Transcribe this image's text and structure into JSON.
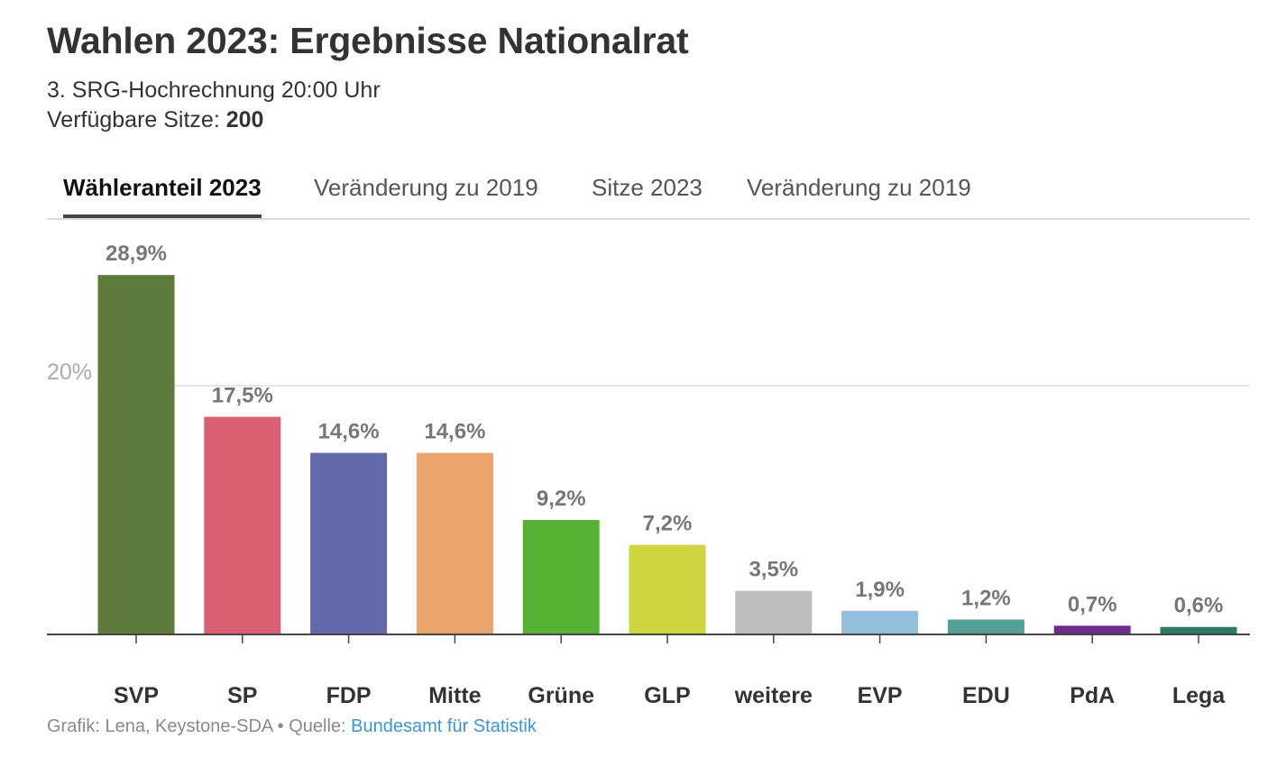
{
  "header": {
    "title": "Wahlen 2023: Ergebnisse Nationalrat",
    "subtitle": "3. SRG-Hochrechnung 20:00 Uhr",
    "seats_label": "Verfügbare Sitze:",
    "seats_value": "200"
  },
  "tabs": [
    {
      "label": "Wähleranteil 2023",
      "active": true
    },
    {
      "label": "Veränderung zu 2019",
      "active": false
    },
    {
      "label": "Sitze 2023",
      "active": false
    },
    {
      "label": "Veränderung zu 2019",
      "active": false
    }
  ],
  "footer": {
    "prefix": "Grafik: Lena, Keystone-SDA • Quelle: ",
    "source_link": "Bundesamt für Statistik"
  },
  "chart_data": {
    "type": "bar",
    "categories": [
      "SVP",
      "SP",
      "FDP",
      "Mitte",
      "Grüne",
      "GLP",
      "weitere",
      "EVP",
      "EDU",
      "PdA",
      "Lega"
    ],
    "values": [
      28.9,
      17.5,
      14.6,
      14.6,
      9.2,
      7.2,
      3.5,
      1.9,
      1.2,
      0.7,
      0.6
    ],
    "labels": [
      "28,9%",
      "17,5%",
      "14,6%",
      "14,6%",
      "9,2%",
      "7,2%",
      "3,5%",
      "1,9%",
      "1,2%",
      "0,7%",
      "0,6%"
    ],
    "colors": [
      "#5e7a3c",
      "#d95f72",
      "#6369aa",
      "#e9a56c",
      "#56b034",
      "#cdd540",
      "#bdbdbd",
      "#94bedb",
      "#55a095",
      "#6b2c8a",
      "#2f7a66"
    ],
    "gridlines": [
      {
        "value": 20,
        "label": "20%"
      }
    ],
    "ylim": [
      0,
      30
    ],
    "grid": true,
    "legend": "none"
  }
}
